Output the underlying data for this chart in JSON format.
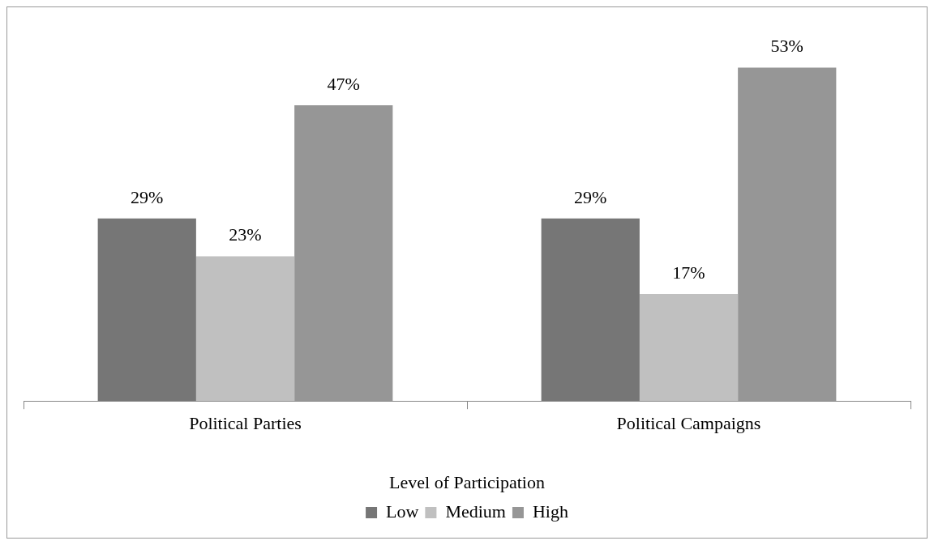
{
  "chart_data": {
    "type": "bar",
    "xlabel": "Level of Participation",
    "categories": [
      "Political Parties",
      "Political Campaigns"
    ],
    "series": [
      {
        "name": "Low",
        "color": "#767676",
        "values": [
          29,
          29
        ],
        "value_labels": [
          "29%",
          "29%"
        ]
      },
      {
        "name": "Medium",
        "color": "#c0c0c0",
        "values": [
          23,
          17
        ],
        "value_labels": [
          "23%",
          "17%"
        ]
      },
      {
        "name": "High",
        "color": "#969696",
        "values": [
          47,
          53
        ],
        "value_labels": [
          "47%",
          "53%"
        ]
      }
    ],
    "legend": "bottom",
    "grid": false
  }
}
